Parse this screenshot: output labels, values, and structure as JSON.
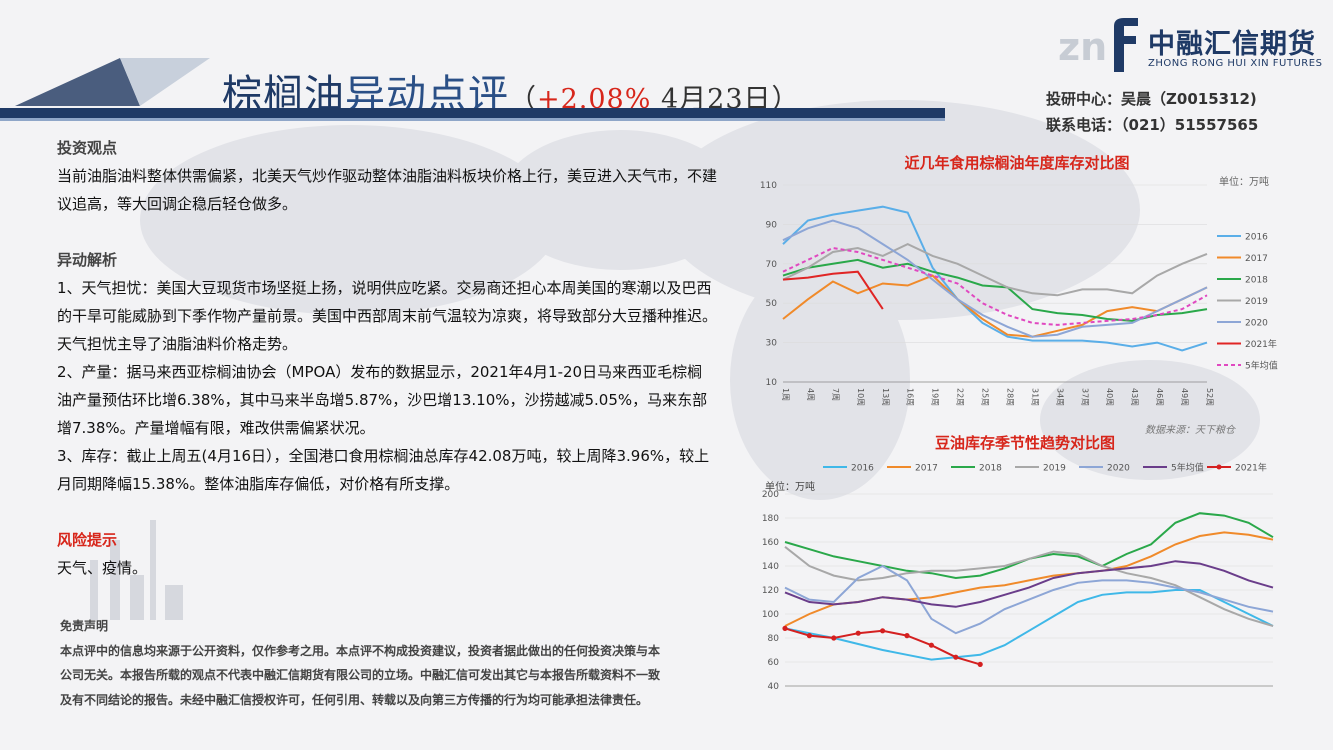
{
  "header": {
    "title_part1": "棕榈油",
    "title_part2": "异动点评",
    "title_open": "（",
    "title_pct": "+2.08%",
    "title_date": " 4月23日）",
    "logo_cn": "中融汇信期货",
    "logo_en": "ZHONG RONG HUI XIN FUTURES",
    "contact_line1": "投研中心：吴晨（Z0015312)",
    "contact_line2": "联系电话：（021）51557565"
  },
  "colors": {
    "brand_navy": "#1f3a66",
    "accent_red": "#d7261b"
  },
  "sections": {
    "view_heading": "投资观点",
    "view_text": "当前油脂油料整体供需偏紧，北美天气炒作驱动整体油脂油料板块价格上行，美豆进入天气市，不建议追高，等大回调企稳后轻仓做多。",
    "analysis_heading": "异动解析",
    "point1": "1、天气担忧：美国大豆现货市场坚挺上扬，说明供应吃紧。交易商还担心本周美国的寒潮以及巴西的干旱可能威胁到下季作物产量前景。美国中西部周末前气温较为凉爽，将导致部分大豆播种推迟。天气担忧主导了油脂油料价格走势。",
    "point2": "2、产量：据马来西亚棕榈油协会（MPOA）发布的数据显示，2021年4月1-20日马来西亚毛棕榈油产量预估环比增6.38%，其中马来半岛增5.87%，沙巴增13.10%，沙捞越减5.05%，马来东部增7.38%。产量增幅有限，难改供需偏紧状况。",
    "point3": "3、库存：截止上周五(4月16日），全国港口食用棕榈油总库存42.08万吨，较上周降3.96%，较上月同期降幅15.38%。整体油脂库存偏低，对价格有所支撑。",
    "risk_heading": "风险提示",
    "risk_text": "天气、疫情。",
    "disclaimer_heading": "免责声明",
    "disclaimer_text": "本点评中的信息均来源于公开资料，仅作参考之用。本点评不构成投资建议，投资者据此做出的任何投资决策与本公司无关。本报告所载的观点不代表中融汇信期货有限公司的立场。中融汇信可发出其它与本报告所载资料不一致及有不同结论的报告。未经中融汇信授权许可，任何引用、转载以及向第三方传播的行为均可能承担法律责任。"
  },
  "chart_data": [
    {
      "type": "line",
      "title": "近几年食用棕榈油年度库存对比图",
      "unit": "单位：万吨",
      "source": "数据来源：天下粮仓",
      "ylim": [
        10,
        110
      ],
      "yticks": [
        10,
        30,
        50,
        70,
        90,
        110
      ],
      "x_tick_labels": [
        "1周",
        "4周",
        "7周",
        "10周",
        "13周",
        "16周",
        "19周",
        "22周",
        "25周",
        "28周",
        "31周",
        "34周",
        "37周",
        "40周",
        "43周",
        "46周",
        "49周",
        "52周"
      ],
      "series": [
        {
          "name": "2016",
          "color": "#5aaee8",
          "values": [
            80,
            92,
            95,
            97,
            99,
            96,
            68,
            52,
            40,
            33,
            31,
            31,
            31,
            30,
            28,
            30,
            26,
            30
          ]
        },
        {
          "name": "2017",
          "color": "#f08a2a",
          "values": [
            42,
            52,
            61,
            55,
            60,
            59,
            64,
            52,
            42,
            34,
            33,
            36,
            39,
            46,
            48,
            46,
            52,
            58
          ]
        },
        {
          "name": "2018",
          "color": "#2aa84a",
          "values": [
            64,
            68,
            70,
            72,
            68,
            70,
            66,
            63,
            59,
            58,
            47,
            45,
            44,
            42,
            41,
            44,
            45,
            47
          ]
        },
        {
          "name": "2019",
          "color": "#a8a8a8",
          "values": [
            62,
            68,
            76,
            78,
            74,
            80,
            74,
            70,
            64,
            58,
            55,
            54,
            57,
            57,
            55,
            64,
            70,
            75
          ]
        },
        {
          "name": "2020",
          "color": "#8da6d6",
          "values": [
            82,
            88,
            92,
            88,
            80,
            72,
            62,
            52,
            44,
            38,
            33,
            34,
            38,
            39,
            40,
            46,
            52,
            58
          ]
        },
        {
          "name": "2021年",
          "color": "#e02525",
          "values": [
            62,
            63,
            65,
            66,
            47,
            null,
            null,
            null,
            null,
            null,
            null,
            null,
            null,
            null,
            null,
            null,
            null,
            null
          ]
        },
        {
          "name": "5年均值",
          "color": "#e048c0",
          "values": [
            66,
            72,
            78,
            76,
            72,
            68,
            64,
            60,
            50,
            44,
            40,
            39,
            40,
            41,
            42,
            44,
            47,
            54
          ]
        }
      ]
    },
    {
      "type": "line",
      "title": "豆油库存季节性趋势对比图",
      "unit": "单位：万吨",
      "ylim": [
        40,
        200
      ],
      "yticks": [
        40,
        60,
        80,
        100,
        120,
        140,
        160,
        180,
        200
      ],
      "series": [
        {
          "name": "2016",
          "color": "#3fb8e8",
          "values": [
            88,
            84,
            80,
            75,
            70,
            66,
            62,
            64,
            66,
            74,
            86,
            98,
            110,
            116,
            118,
            118,
            120,
            120,
            110,
            100,
            90
          ]
        },
        {
          "name": "2017",
          "color": "#f08a2a",
          "values": [
            90,
            100,
            108,
            110,
            114,
            112,
            114,
            118,
            122,
            124,
            128,
            132,
            134,
            136,
            140,
            148,
            158,
            165,
            168,
            166,
            162
          ]
        },
        {
          "name": "2018",
          "color": "#2aa84a",
          "values": [
            160,
            154,
            148,
            144,
            140,
            136,
            134,
            130,
            132,
            138,
            146,
            150,
            148,
            140,
            150,
            158,
            176,
            184,
            182,
            176,
            164
          ]
        },
        {
          "name": "2019",
          "color": "#a8a8a8",
          "values": [
            156,
            140,
            132,
            128,
            130,
            134,
            136,
            136,
            138,
            140,
            146,
            152,
            150,
            140,
            134,
            130,
            124,
            114,
            104,
            96,
            90
          ]
        },
        {
          "name": "2020",
          "color": "#8da6d6",
          "values": [
            122,
            112,
            110,
            130,
            140,
            128,
            96,
            84,
            92,
            104,
            112,
            120,
            126,
            128,
            128,
            126,
            122,
            118,
            112,
            106,
            102
          ]
        },
        {
          "name": "5年均值",
          "color": "#6a3d8a",
          "values": [
            118,
            110,
            108,
            110,
            114,
            112,
            108,
            106,
            110,
            116,
            122,
            130,
            134,
            136,
            138,
            140,
            144,
            142,
            136,
            128,
            122
          ]
        },
        {
          "name": "2021年",
          "color": "#d42020",
          "values": [
            88,
            82,
            80,
            84,
            86,
            82,
            74,
            64,
            58,
            null,
            null,
            null,
            null,
            null,
            null,
            null,
            null,
            null,
            null,
            null,
            null
          ]
        }
      ]
    }
  ]
}
